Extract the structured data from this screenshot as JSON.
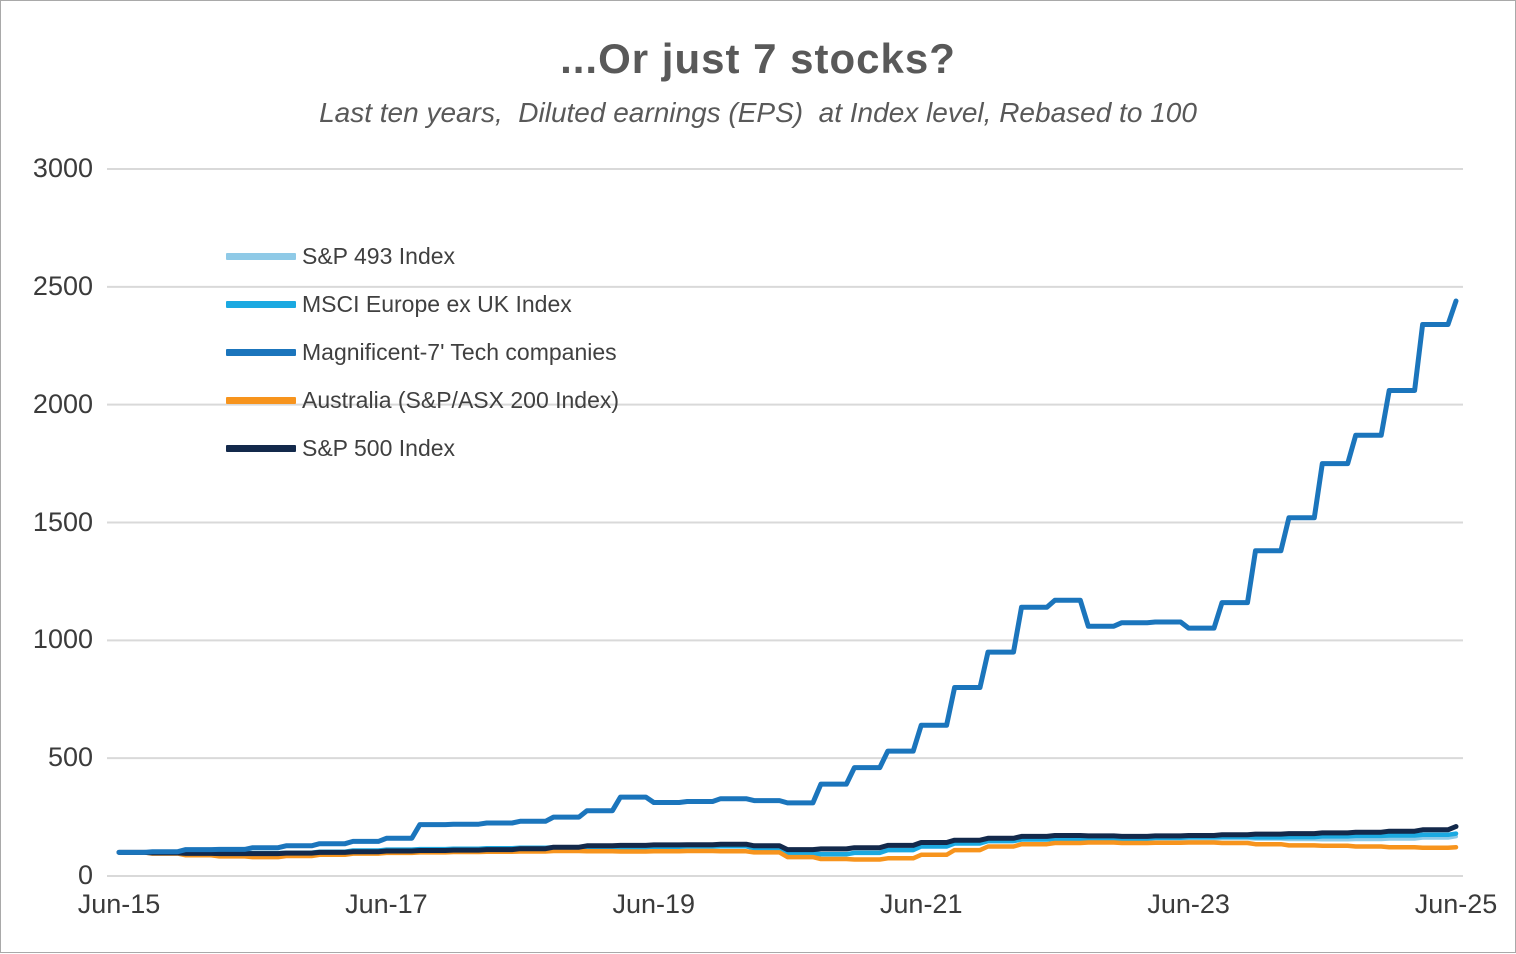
{
  "chart_data": {
    "type": "line",
    "title": "...Or just 7 stocks?",
    "subtitle": "Last ten years,  Diluted earnings (EPS)  at Index level, Rebased to 100",
    "ylim": [
      0,
      3000
    ],
    "yticks": [
      0,
      500,
      1000,
      1500,
      2000,
      2500,
      3000
    ],
    "ytick_labels": [
      "0",
      "500",
      "1000",
      "1500",
      "2000",
      "2500",
      "3000"
    ],
    "xtick_indices": [
      0,
      8,
      16,
      24,
      32,
      40
    ],
    "xtick_labels": [
      "Jun-15",
      "Jun-17",
      "Jun-19",
      "Jun-21",
      "Jun-23",
      "Jun-25"
    ],
    "grid": true,
    "grid_color": "#D9D9D9",
    "background_color": "#FFFFFF",
    "legend_position": "upper-left-inside",
    "x": [
      "Jun-15",
      "Sep-15",
      "Dec-15",
      "Mar-16",
      "Jun-16",
      "Sep-16",
      "Dec-16",
      "Mar-17",
      "Jun-17",
      "Sep-17",
      "Dec-17",
      "Mar-18",
      "Jun-18",
      "Sep-18",
      "Dec-18",
      "Mar-19",
      "Jun-19",
      "Sep-19",
      "Dec-19",
      "Mar-20",
      "Jun-20",
      "Sep-20",
      "Dec-20",
      "Mar-21",
      "Jun-21",
      "Sep-21",
      "Dec-21",
      "Mar-22",
      "Jun-22",
      "Sep-22",
      "Dec-22",
      "Mar-23",
      "Jun-23",
      "Sep-23",
      "Dec-23",
      "Mar-24",
      "Jun-24",
      "Sep-24",
      "Dec-24",
      "Mar-25",
      "Jun-25"
    ],
    "series": [
      {
        "name": "S&P 493 Index",
        "color": "#8FCAE7",
        "values": [
          100,
          98,
          96,
          95,
          96,
          98,
          101,
          104,
          107,
          109,
          111,
          113,
          117,
          122,
          127,
          129,
          131,
          132,
          134,
          126,
          108,
          112,
          118,
          128,
          140,
          150,
          158,
          163,
          165,
          160,
          157,
          158,
          159,
          160,
          158,
          156,
          155,
          156,
          158,
          162,
          168
        ]
      },
      {
        "name": "MSCI Europe ex UK Index",
        "color": "#1BA9E1",
        "values": [
          100,
          97,
          99,
          98,
          97,
          99,
          103,
          108,
          112,
          114,
          116,
          118,
          120,
          122,
          121,
          122,
          124,
          125,
          126,
          118,
          95,
          92,
          98,
          110,
          125,
          138,
          148,
          155,
          158,
          155,
          158,
          162,
          165,
          166,
          164,
          165,
          168,
          170,
          172,
          175,
          180
        ]
      },
      {
        "name": "Magnificent-7' Tech companies",
        "color": "#1B75BC",
        "values": [
          100,
          103,
          112,
          113,
          120,
          128,
          137,
          147,
          160,
          218,
          220,
          225,
          232,
          250,
          277,
          335,
          312,
          316,
          328,
          320,
          310,
          390,
          460,
          530,
          640,
          800,
          950,
          1140,
          1170,
          1060,
          1075,
          1078,
          1052,
          1160,
          1380,
          1520,
          1750,
          1870,
          2060,
          2340,
          2440
        ]
      },
      {
        "name": "Australia (S&P/ASX 200 Index)",
        "color": "#F7941D",
        "values": [
          100,
          95,
          88,
          83,
          80,
          85,
          90,
          95,
          98,
          100,
          102,
          103,
          104,
          106,
          105,
          104,
          105,
          106,
          105,
          100,
          80,
          72,
          70,
          75,
          90,
          110,
          125,
          135,
          140,
          142,
          140,
          141,
          142,
          140,
          135,
          130,
          128,
          125,
          122,
          120,
          122
        ]
      },
      {
        "name": "S&P 500 Index",
        "color": "#13294B",
        "values": [
          100,
          98,
          96,
          95,
          95,
          97,
          100,
          103,
          106,
          108,
          110,
          112,
          116,
          122,
          128,
          130,
          132,
          133,
          135,
          128,
          112,
          115,
          120,
          130,
          142,
          152,
          160,
          168,
          172,
          170,
          168,
          170,
          172,
          175,
          178,
          180,
          183,
          186,
          190,
          196,
          210
        ]
      }
    ]
  }
}
